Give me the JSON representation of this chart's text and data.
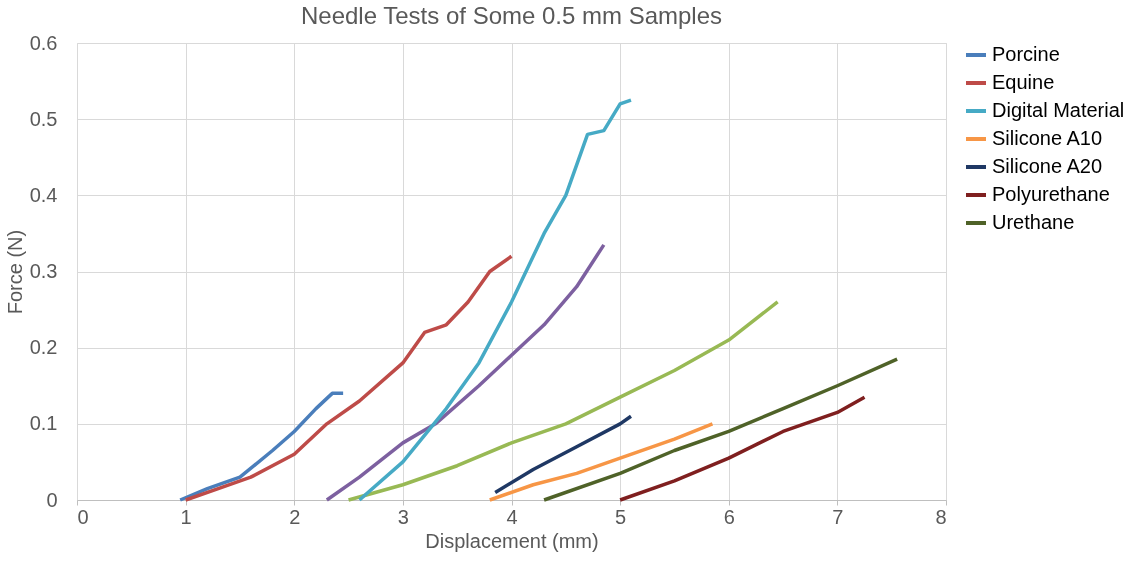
{
  "chart_data": {
    "type": "line",
    "title": "Needle Tests of Some 0.5 mm Samples",
    "xlabel": "Displacement (mm)",
    "ylabel": "Force (N)",
    "xlim": [
      0,
      8
    ],
    "xticks": [
      0,
      1,
      2,
      3,
      4,
      5,
      6,
      7,
      8
    ],
    "ylim": [
      0,
      0.6
    ],
    "yticks": [
      0,
      0.1,
      0.2,
      0.3,
      0.4,
      0.5,
      0.6
    ],
    "grid": true,
    "legend": "right",
    "marker": "none",
    "line_style": "solid",
    "series": [
      {
        "name": "Porcine",
        "color": "#4a7ebb",
        "x": [
          0.95,
          1.2,
          1.5,
          1.8,
          2.0,
          2.2,
          2.35,
          2.45
        ],
        "values": [
          0,
          0.015,
          0.03,
          0.065,
          0.09,
          0.12,
          0.14,
          0.14
        ]
      },
      {
        "name": "Equine",
        "color": "#be4b48",
        "x": [
          1.0,
          1.3,
          1.6,
          2.0,
          2.3,
          2.6,
          3.0,
          3.2,
          3.4,
          3.6,
          3.8,
          4.0
        ],
        "values": [
          0,
          0.015,
          0.03,
          0.06,
          0.1,
          0.13,
          0.18,
          0.22,
          0.23,
          0.26,
          0.3,
          0.32
        ]
      },
      {
        "color": "#98b954",
        "x": [
          2.5,
          3.0,
          3.5,
          4.0,
          4.5,
          5.0,
          5.5,
          6.0,
          6.45
        ],
        "values": [
          0,
          0.02,
          0.045,
          0.075,
          0.1,
          0.135,
          0.17,
          0.21,
          0.26
        ]
      },
      {
        "color": "#7d60a0",
        "x": [
          2.3,
          2.6,
          3.0,
          3.3,
          3.7,
          4.0,
          4.3,
          4.6,
          4.85
        ],
        "values": [
          0,
          0.03,
          0.075,
          0.1,
          0.15,
          0.19,
          0.23,
          0.28,
          0.335
        ]
      },
      {
        "name": "Digital Material",
        "color": "#46aac5",
        "x": [
          2.6,
          3.0,
          3.4,
          3.7,
          4.0,
          4.3,
          4.5,
          4.7,
          4.85,
          5.0,
          5.1
        ],
        "values": [
          0,
          0.05,
          0.12,
          0.18,
          0.26,
          0.35,
          0.4,
          0.48,
          0.485,
          0.52,
          0.525
        ]
      },
      {
        "name": "Silicone A10",
        "color": "#f79646",
        "x": [
          3.8,
          4.2,
          4.6,
          5.0,
          5.5,
          5.85
        ],
        "values": [
          0,
          0.02,
          0.035,
          0.055,
          0.08,
          0.1
        ]
      },
      {
        "name": "Silicone A20",
        "color": "#1f3864",
        "x": [
          3.85,
          4.2,
          4.6,
          5.0,
          5.1
        ],
        "values": [
          0.01,
          0.04,
          0.07,
          0.1,
          0.11
        ]
      },
      {
        "name": "Polyurethane",
        "color": "#7f1f1f",
        "x": [
          5.0,
          5.5,
          6.0,
          6.5,
          7.0,
          7.25
        ],
        "values": [
          0,
          0.025,
          0.055,
          0.09,
          0.115,
          0.135
        ]
      },
      {
        "name": "Urethane",
        "color": "#4f6228",
        "x": [
          4.3,
          5.0,
          5.5,
          6.0,
          6.5,
          7.0,
          7.55
        ],
        "values": [
          0,
          0.035,
          0.065,
          0.09,
          0.12,
          0.15,
          0.185
        ]
      }
    ]
  }
}
